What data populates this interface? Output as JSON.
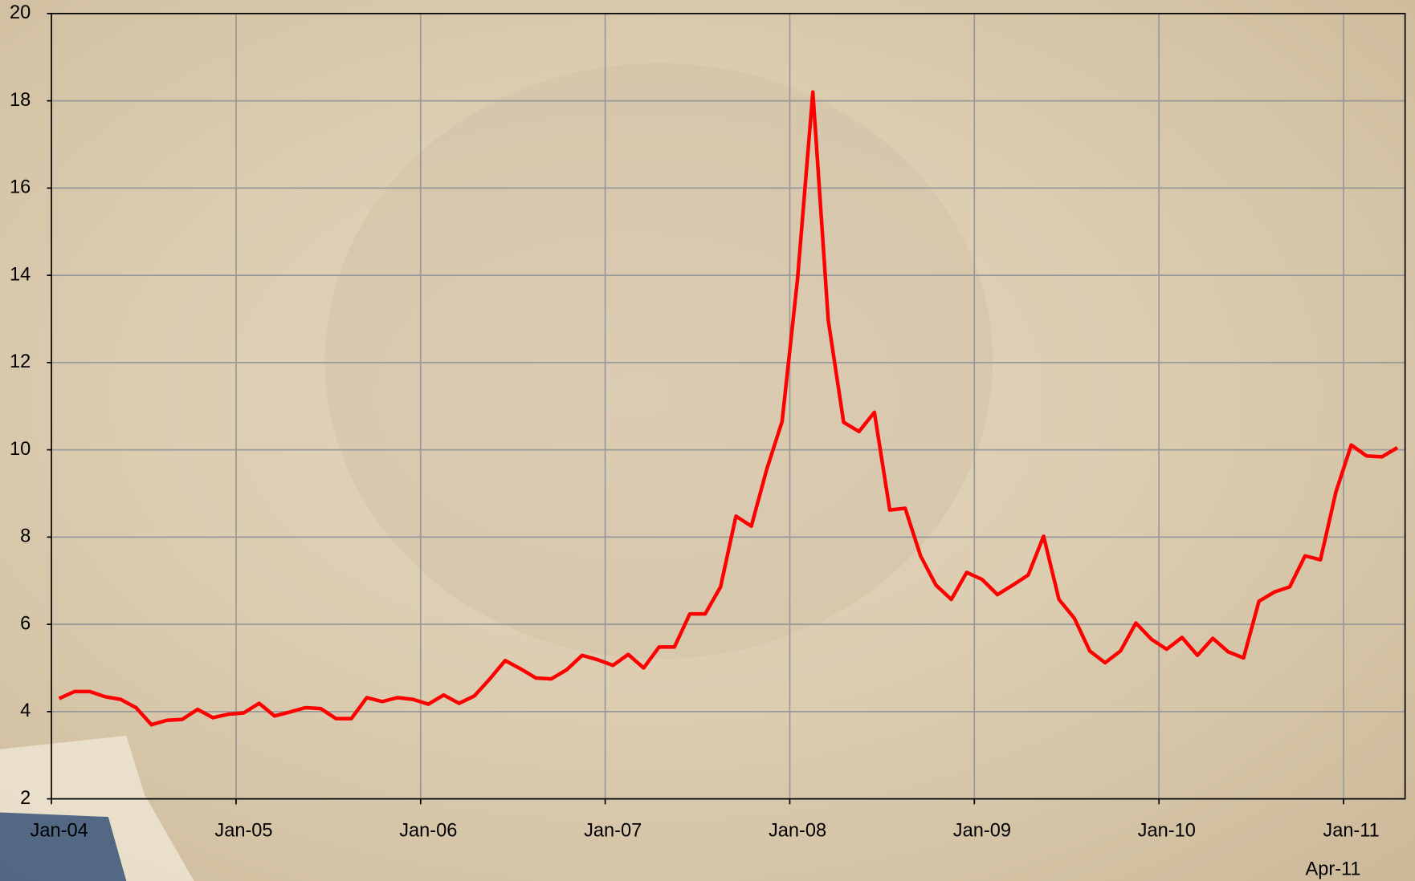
{
  "chart_data": {
    "type": "line",
    "categories": [
      "Jan-04",
      null,
      null,
      null,
      null,
      null,
      null,
      null,
      null,
      null,
      null,
      null,
      "Jan-05",
      null,
      null,
      null,
      null,
      null,
      null,
      null,
      null,
      null,
      null,
      null,
      "Jan-06",
      null,
      null,
      null,
      null,
      null,
      null,
      null,
      null,
      null,
      null,
      null,
      "Jan-07",
      null,
      null,
      null,
      null,
      null,
      null,
      null,
      null,
      null,
      null,
      null,
      "Jan-08",
      null,
      null,
      null,
      null,
      null,
      null,
      null,
      null,
      null,
      null,
      null,
      "Jan-09",
      null,
      null,
      null,
      null,
      null,
      null,
      null,
      null,
      null,
      null,
      null,
      "Jan-10",
      null,
      null,
      null,
      null,
      null,
      null,
      null,
      null,
      null,
      null,
      null,
      "Jan-11",
      null,
      null,
      "Apr-11"
    ],
    "series": [
      {
        "color": "#ff0000",
        "values": [
          4.3,
          4.46,
          4.46,
          4.34,
          4.28,
          4.09,
          3.7,
          3.8,
          3.82,
          4.05,
          3.86,
          3.94,
          3.97,
          4.19,
          3.9,
          3.99,
          4.09,
          4.07,
          3.84,
          3.84,
          4.32,
          4.23,
          4.32,
          4.28,
          4.17,
          4.38,
          4.19,
          4.36,
          4.75,
          5.17,
          4.98,
          4.77,
          4.75,
          4.96,
          5.29,
          5.19,
          5.06,
          5.31,
          5.0,
          5.48,
          5.48,
          6.24,
          6.24,
          6.86,
          8.48,
          8.25,
          9.55,
          10.65,
          13.9,
          18.2,
          12.97,
          10.63,
          10.42,
          10.86,
          8.62,
          8.66,
          7.57,
          6.9,
          6.57,
          7.19,
          7.03,
          6.68,
          6.9,
          7.13,
          8.02,
          6.57,
          6.14,
          5.39,
          5.12,
          5.39,
          6.03,
          5.66,
          5.43,
          5.7,
          5.29,
          5.68,
          5.37,
          5.23,
          6.53,
          6.74,
          6.86,
          7.57,
          7.48,
          9.03,
          10.11,
          9.86,
          9.84,
          10.05
        ]
      }
    ],
    "ylim": [
      2,
      20
    ],
    "yticks": [
      2,
      4,
      6,
      8,
      10,
      12,
      14,
      16,
      18,
      20
    ],
    "grid": true
  }
}
